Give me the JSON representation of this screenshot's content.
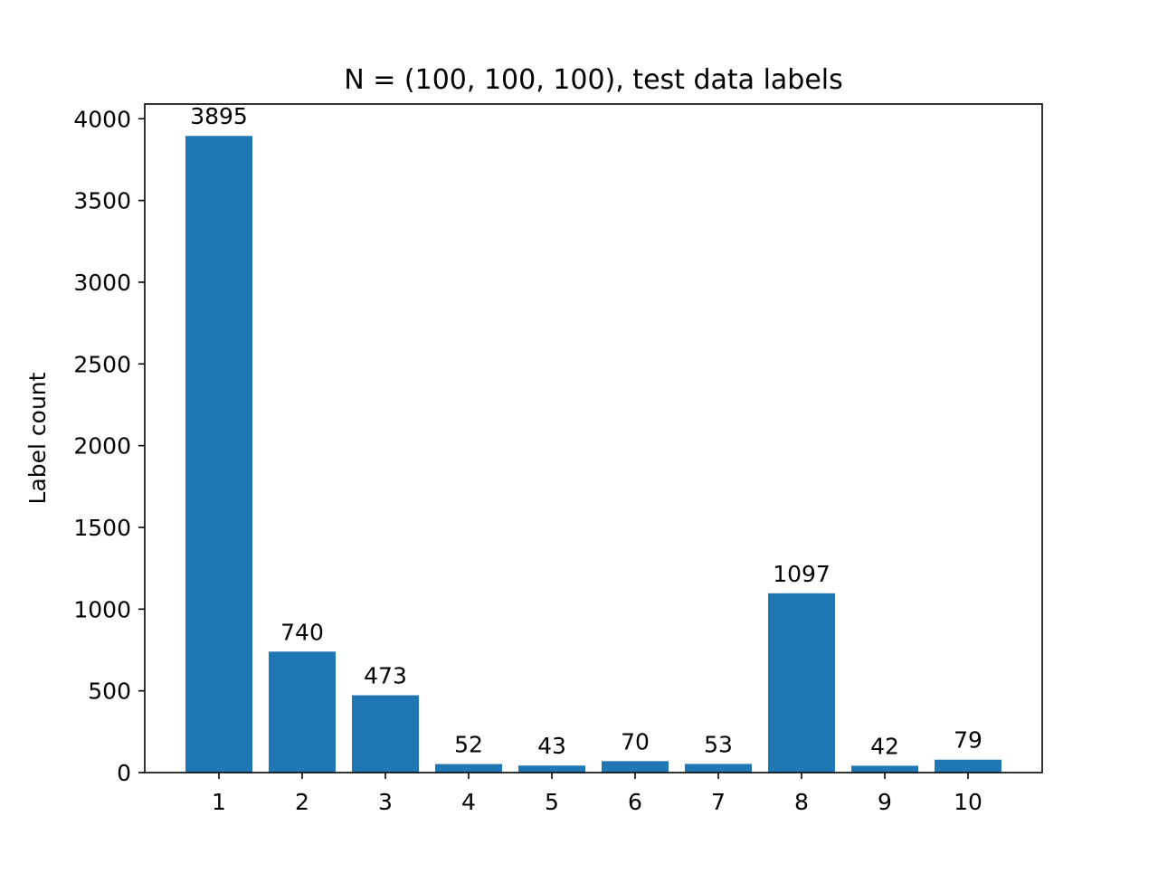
{
  "chart_data": {
    "type": "bar",
    "title": "N = (100, 100, 100), test data labels",
    "xlabel": "",
    "ylabel": "Label count",
    "categories": [
      "1",
      "2",
      "3",
      "4",
      "5",
      "6",
      "7",
      "8",
      "9",
      "10"
    ],
    "values": [
      3895,
      740,
      473,
      52,
      43,
      70,
      53,
      1097,
      42,
      79
    ],
    "data_labels": [
      "3895",
      "740",
      "473",
      "52",
      "43",
      "70",
      "53",
      "1097",
      "42",
      "79"
    ],
    "ylim": [
      0,
      4090
    ],
    "yticks": [
      0,
      500,
      1000,
      1500,
      2000,
      2500,
      3000,
      3500,
      4000
    ],
    "ytick_labels": [
      "0",
      "500",
      "1000",
      "1500",
      "2000",
      "2500",
      "3000",
      "3500",
      "4000"
    ],
    "grid": false,
    "legend": "none",
    "colors": {
      "bar": "#1f77b4",
      "axes": "#000000",
      "background": "#ffffff"
    }
  }
}
